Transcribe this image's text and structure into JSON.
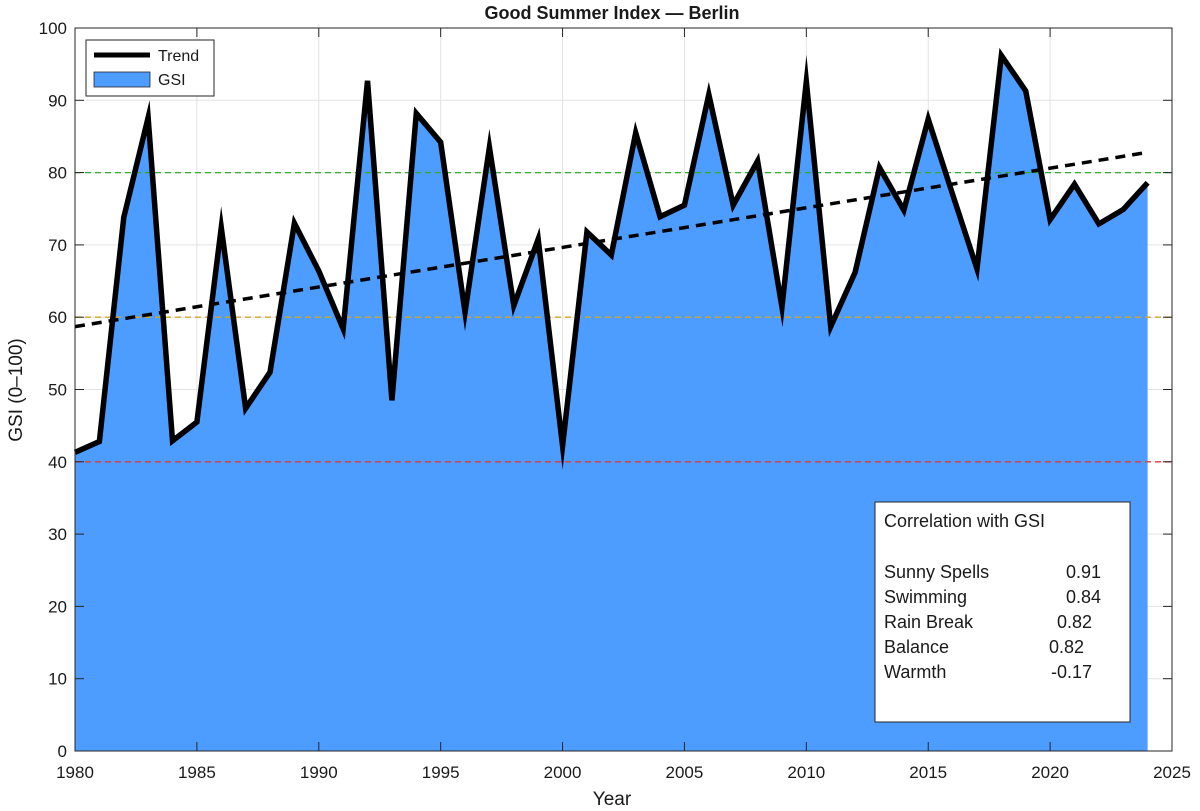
{
  "chart_data": {
    "type": "area",
    "title": "Good Summer Index — Berlin",
    "xlabel": "Year",
    "ylabel": "GSI (0–100)",
    "xlim": [
      1980,
      2025
    ],
    "ylim": [
      0,
      100
    ],
    "xticks": [
      1980,
      1985,
      1990,
      1995,
      2000,
      2005,
      2010,
      2015,
      2020,
      2025
    ],
    "yticks": [
      0,
      10,
      20,
      30,
      40,
      50,
      60,
      70,
      80,
      90,
      100
    ],
    "grid": true,
    "legend_position": "top-left",
    "series": [
      {
        "name": "GSI",
        "color": "#4d9cff",
        "x": [
          1980,
          1981,
          1982,
          1983,
          1984,
          1985,
          1986,
          1987,
          1988,
          1989,
          1990,
          1991,
          1992,
          1993,
          1994,
          1995,
          1996,
          1997,
          1998,
          1999,
          2000,
          2001,
          2002,
          2003,
          2004,
          2005,
          2006,
          2007,
          2008,
          2009,
          2010,
          2011,
          2012,
          2013,
          2014,
          2015,
          2016,
          2017,
          2018,
          2019,
          2020,
          2021,
          2022,
          2023,
          2024
        ],
        "values": [
          41.3,
          42.8,
          73.8,
          87.6,
          42.9,
          45.5,
          72.4,
          47.4,
          52.4,
          73.0,
          66.4,
          58.4,
          92.7,
          48.5,
          88.2,
          84.2,
          60.7,
          83.5,
          61.6,
          70.8,
          42.2,
          71.8,
          68.6,
          85.5,
          73.9,
          75.5,
          90.8,
          75.5,
          81.6,
          61.4,
          92.6,
          58.7,
          66.2,
          80.7,
          74.8,
          87.4,
          77.0,
          66.7,
          96.2,
          91.3,
          73.5,
          78.4,
          72.9,
          74.9,
          78.6
        ]
      }
    ],
    "trend": {
      "name": "Trend",
      "color": "#000000",
      "x": [
        1980,
        2024
      ],
      "values": [
        58.7,
        82.8
      ]
    },
    "reference_lines": [
      {
        "value": 80,
        "color": "#33aa33"
      },
      {
        "value": 60,
        "color": "#d4a62a"
      },
      {
        "value": 40,
        "color": "#e03c3c"
      }
    ],
    "annotation": {
      "title": "Correlation with GSI",
      "rows": [
        {
          "label": "Sunny Spells",
          "value": "0.91"
        },
        {
          "label": "Swimming",
          "value": "0.84"
        },
        {
          "label": "Rain Break",
          "value": "0.82"
        },
        {
          "label": "Balance",
          "value": "0.82"
        },
        {
          "label": "Warmth",
          "value": "-0.17"
        }
      ]
    }
  }
}
